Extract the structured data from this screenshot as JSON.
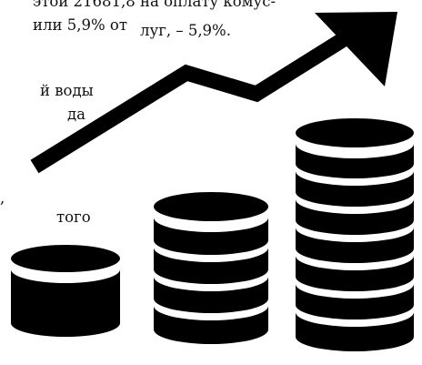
{
  "text_left": {
    "line1": "этой 21681,8",
    "line2": "или 5,9% от",
    "line3": "й воды",
    "line4": "да",
    "line5": ",",
    "line6": "того"
  },
  "text_right": {
    "line1": "на оплату комус-",
    "line2": "луг, – 5,9%."
  },
  "illustration": {
    "arrow_icon": "trend-up-arrow-icon",
    "coins_icon": "coin-stacks-icon",
    "color": "#000000"
  }
}
